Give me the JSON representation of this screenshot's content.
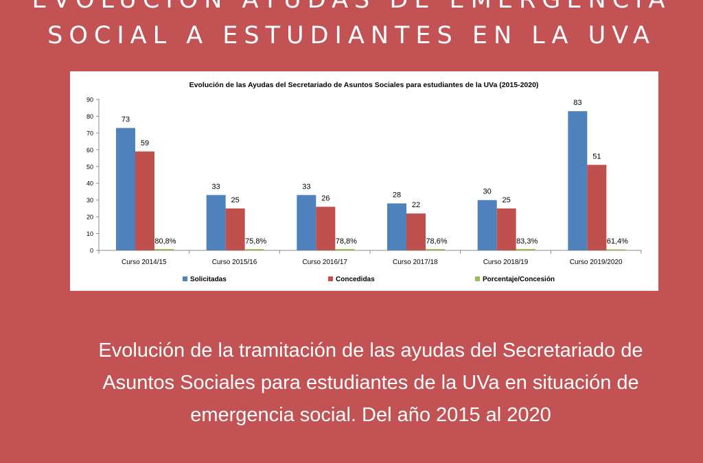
{
  "header": {
    "line1": "EVOLUCIÓN AYUDAS DE EMERGENCIA",
    "line2": "SOCIAL A ESTUDIANTES EN LA UVA"
  },
  "caption": "Evolución de la tramitación de las ayudas del Secretariado de Asuntos Sociales para estudiantes de la UVa en situación de emergencia social. Del año 2015 al 2020",
  "colors": {
    "background": "#c25253",
    "solicitadas": "#4f81bd",
    "concedidas": "#c0504d",
    "porcentaje": "#9bbb59"
  },
  "chart_data": {
    "type": "bar",
    "title": "Evolución de las Ayudas del Secretariado de Asuntos Sociales para estudiantes de la UVa (2015-2020)",
    "categories": [
      "Curso 2014/15",
      "Curso 2015/16",
      "Curso 2016/17",
      "Curso 2017/18",
      "Curso 2018/19",
      "Curso 2019/2020"
    ],
    "series": [
      {
        "name": "Solicitadas",
        "values": [
          73,
          33,
          33,
          28,
          30,
          83
        ],
        "labels": [
          "73",
          "33",
          "33",
          "28",
          "30",
          "83"
        ]
      },
      {
        "name": "Concedidas",
        "values": [
          59,
          25,
          26,
          22,
          25,
          51
        ],
        "labels": [
          "59",
          "25",
          "26",
          "22",
          "25",
          "51"
        ]
      },
      {
        "name": "Porcentaje/Concesión",
        "values": [
          0.808,
          0.758,
          0.788,
          0.786,
          0.833,
          0.614
        ],
        "labels": [
          "80,8%",
          "75,8%",
          "78,8%",
          "78,6%",
          "83,3%",
          "61,4%"
        ]
      }
    ],
    "yticks": [
      "0",
      "10",
      "20",
      "30",
      "40",
      "50",
      "60",
      "70",
      "80",
      "90"
    ],
    "ylim": [
      0,
      90
    ],
    "xlabel": "",
    "ylabel": "",
    "legend_position": "bottom"
  }
}
